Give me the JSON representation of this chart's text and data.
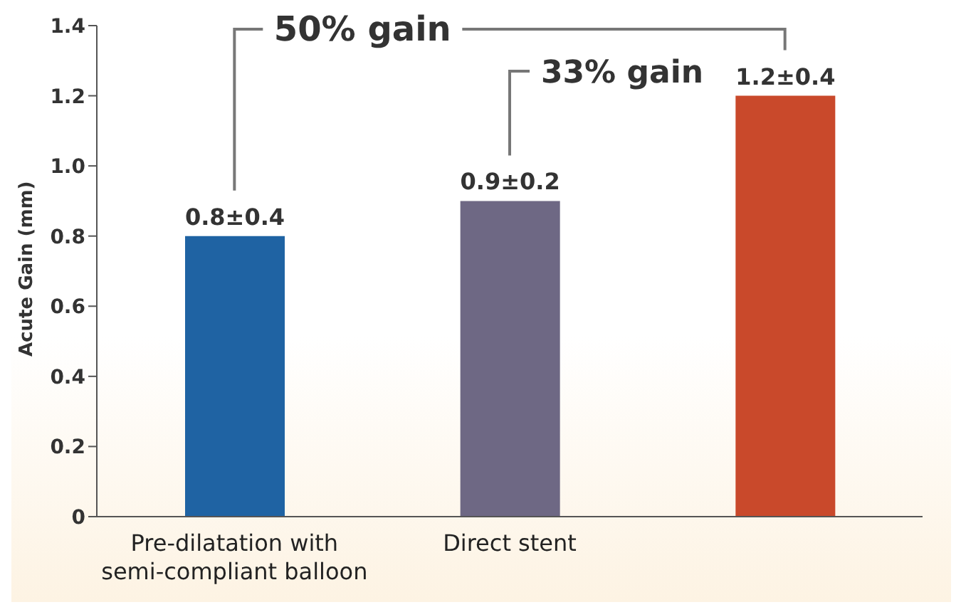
{
  "chart_data": {
    "type": "bar",
    "ylabel": "Acute Gain (mm)",
    "categories": [
      "Pre-dilatation with semi-compliant balloon",
      "Direct stent",
      null
    ],
    "values": [
      0.8,
      0.9,
      1.2
    ],
    "colors": [
      "#1f63a3",
      "#6e6884",
      "#c9492b"
    ],
    "value_labels": [
      "0.8±0.4",
      "0.9±0.2",
      "1.2±0.4"
    ],
    "ylim": [
      0,
      1.4
    ],
    "yticks": [
      0,
      0.2,
      0.4,
      0.6,
      0.8,
      {
        "value": 1,
        "label": "1.0"
      },
      1.2,
      1.4
    ],
    "annotations": [
      "50% gain",
      "33% gain"
    ]
  }
}
